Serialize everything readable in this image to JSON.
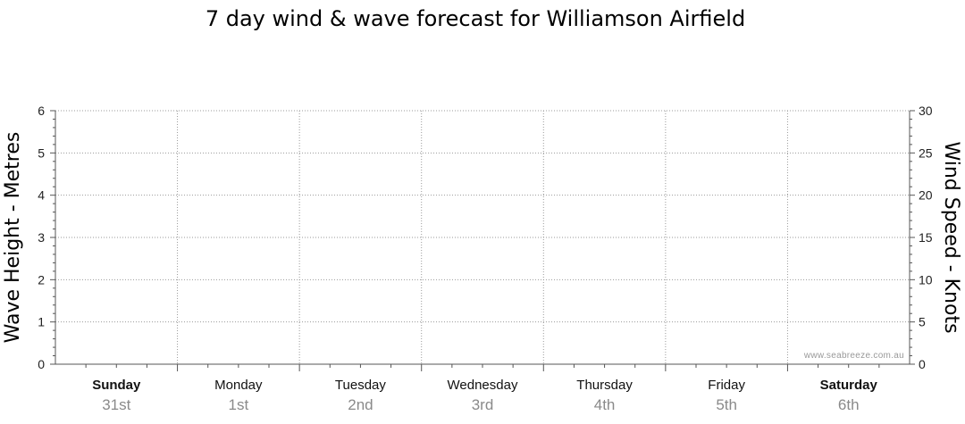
{
  "chart_data": {
    "type": "line",
    "title": "7 day wind & wave forecast for Williamson Airfield",
    "y_left": {
      "label": "Wave Height - Metres",
      "range": [
        0,
        6
      ],
      "ticks": [
        "0",
        "1",
        "2",
        "3",
        "4",
        "5",
        "6"
      ]
    },
    "y_right": {
      "label": "Wind Speed - Knots",
      "range": [
        0,
        30
      ],
      "ticks": [
        "0",
        "5",
        "10",
        "15",
        "20",
        "25",
        "30"
      ]
    },
    "days": [
      {
        "name": "Sunday",
        "date": "31st",
        "bold": true
      },
      {
        "name": "Monday",
        "date": "1st",
        "bold": false
      },
      {
        "name": "Tuesday",
        "date": "2nd",
        "bold": false
      },
      {
        "name": "Wednesday",
        "date": "3rd",
        "bold": false
      },
      {
        "name": "Thursday",
        "date": "4th",
        "bold": false
      },
      {
        "name": "Friday",
        "date": "5th",
        "bold": false
      },
      {
        "name": "Saturday",
        "date": "6th",
        "bold": true
      }
    ],
    "series": [],
    "grid": true
  },
  "watermark": "www.seabreeze.com.au"
}
